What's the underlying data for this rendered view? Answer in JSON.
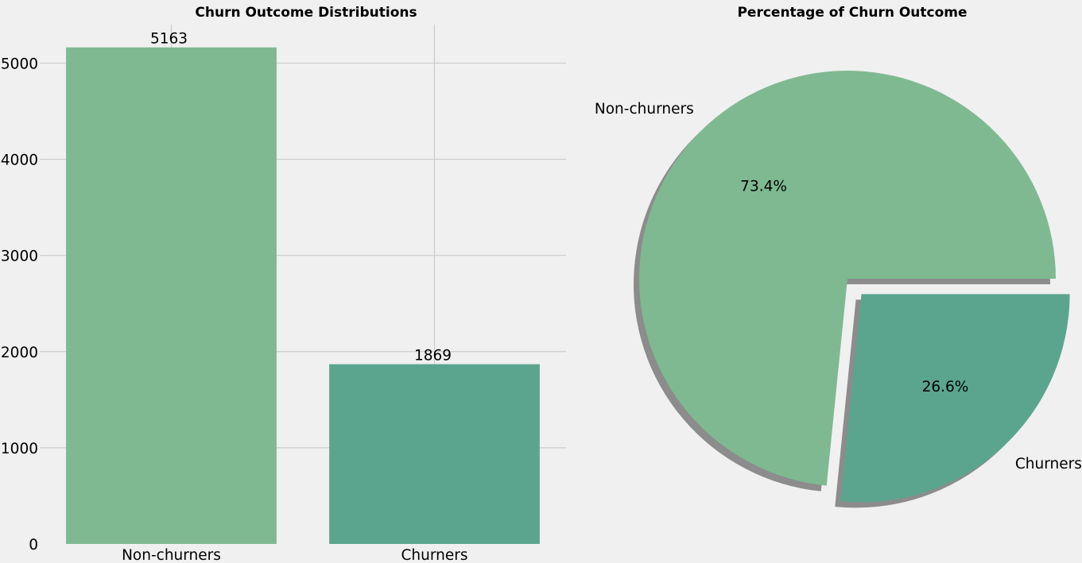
{
  "chart_data": [
    {
      "type": "bar",
      "title": "Churn Outcome Distributions",
      "categories": [
        "Non-churners",
        "Churners"
      ],
      "values": [
        5163,
        1869
      ],
      "data_labels": [
        "5163",
        "1869"
      ],
      "ylim": [
        0,
        5400
      ],
      "yticks": [
        0,
        1000,
        2000,
        3000,
        4000,
        5000
      ],
      "ytick_labels": [
        "0",
        "1000",
        "2000",
        "3000",
        "4000",
        "5000"
      ],
      "grid": true,
      "colors": [
        "#7fb991",
        "#5ba58f"
      ]
    },
    {
      "type": "pie",
      "title": "Percentage of Churn Outcome",
      "labels": [
        "Non-churners",
        "Churners"
      ],
      "values": [
        73.4,
        26.6
      ],
      "pct_labels": [
        "73.4%",
        "26.6%"
      ],
      "explode": [
        0,
        0.1
      ],
      "shadow": true,
      "colors": [
        "#7fb991",
        "#5ba58f"
      ]
    }
  ]
}
